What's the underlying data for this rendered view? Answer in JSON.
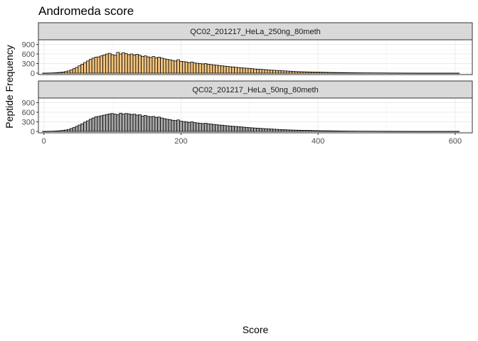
{
  "chart_data": {
    "type": "bar",
    "title": "Andromeda score",
    "xlabel": "Score",
    "ylabel": "Peptide Frequency",
    "xlim": [
      -8,
      625
    ],
    "ylim": [
      0,
      1000
    ],
    "x_ticks": [
      0,
      200,
      400,
      600
    ],
    "y_ticks": [
      0,
      300,
      600,
      900
    ],
    "bin_width": 4,
    "grid": true,
    "panels": [
      {
        "name": "QC02_201217_HeLa_250ng_80meth",
        "fill": "#f2c47e",
        "bins": [
          0,
          4,
          8,
          12,
          16,
          20,
          24,
          28,
          32,
          36,
          40,
          44,
          48,
          52,
          56,
          60,
          64,
          68,
          72,
          76,
          80,
          84,
          88,
          92,
          96,
          100,
          104,
          108,
          112,
          116,
          120,
          124,
          128,
          132,
          136,
          140,
          144,
          148,
          152,
          156,
          160,
          164,
          168,
          172,
          176,
          180,
          184,
          188,
          192,
          196,
          200,
          204,
          208,
          212,
          216,
          220,
          224,
          228,
          232,
          236,
          240,
          244,
          248,
          252,
          256,
          260,
          264,
          268,
          272,
          276,
          280,
          284,
          288,
          292,
          296,
          300,
          304,
          308,
          312,
          316,
          320,
          324,
          328,
          332,
          336,
          340,
          344,
          348,
          352,
          356,
          360,
          364,
          368,
          372,
          376,
          380,
          384,
          388,
          392,
          396,
          400,
          404,
          408,
          412,
          416,
          420,
          424,
          428,
          432,
          436,
          440,
          444,
          448,
          452,
          456,
          460,
          464,
          468,
          472,
          476,
          480,
          484,
          488,
          492,
          496,
          500,
          504,
          508,
          512,
          516,
          520,
          524,
          528,
          532,
          536,
          540,
          544,
          548,
          552,
          556,
          560,
          564,
          568,
          572,
          576,
          580,
          584,
          588,
          592,
          596,
          600,
          604
        ],
        "values": [
          2,
          3,
          5,
          8,
          12,
          18,
          25,
          35,
          50,
          70,
          100,
          140,
          180,
          230,
          280,
          330,
          380,
          430,
          470,
          500,
          510,
          540,
          570,
          600,
          620,
          580,
          560,
          650,
          600,
          640,
          610,
          580,
          600,
          570,
          590,
          560,
          520,
          540,
          510,
          490,
          520,
          480,
          500,
          470,
          450,
          430,
          420,
          400,
          380,
          420,
          370,
          360,
          350,
          330,
          350,
          320,
          310,
          300,
          290,
          300,
          280,
          270,
          260,
          250,
          240,
          230,
          220,
          210,
          200,
          195,
          185,
          175,
          170,
          160,
          155,
          150,
          140,
          130,
          125,
          120,
          115,
          110,
          100,
          95,
          90,
          85,
          80,
          75,
          70,
          65,
          60,
          55,
          50,
          48,
          45,
          42,
          40,
          38,
          36,
          34,
          32,
          30,
          28,
          26,
          24,
          22,
          20,
          19,
          18,
          17,
          16,
          15,
          14,
          13,
          12,
          11,
          10,
          10,
          9,
          9,
          8,
          8,
          7,
          7,
          6,
          6,
          5,
          5,
          5,
          4,
          4,
          4,
          3,
          3,
          3,
          3,
          2,
          2,
          2,
          2,
          2,
          2,
          2,
          2,
          2,
          2,
          2,
          2,
          2,
          2,
          2,
          2
        ]
      },
      {
        "name": "QC02_201217_HeLa_50ng_80meth",
        "fill": "#a6a6a6",
        "bins": [
          0,
          4,
          8,
          12,
          16,
          20,
          24,
          28,
          32,
          36,
          40,
          44,
          48,
          52,
          56,
          60,
          64,
          68,
          72,
          76,
          80,
          84,
          88,
          92,
          96,
          100,
          104,
          108,
          112,
          116,
          120,
          124,
          128,
          132,
          136,
          140,
          144,
          148,
          152,
          156,
          160,
          164,
          168,
          172,
          176,
          180,
          184,
          188,
          192,
          196,
          200,
          204,
          208,
          212,
          216,
          220,
          224,
          228,
          232,
          236,
          240,
          244,
          248,
          252,
          256,
          260,
          264,
          268,
          272,
          276,
          280,
          284,
          288,
          292,
          296,
          300,
          304,
          308,
          312,
          316,
          320,
          324,
          328,
          332,
          336,
          340,
          344,
          348,
          352,
          356,
          360,
          364,
          368,
          372,
          376,
          380,
          384,
          388,
          392,
          396,
          400,
          404,
          408,
          412,
          416,
          420,
          424,
          428,
          432,
          436,
          440,
          444,
          448,
          452,
          456,
          460,
          464,
          468,
          472,
          476,
          480,
          484,
          488,
          492,
          496,
          500,
          504,
          508,
          512,
          516,
          520,
          524,
          528,
          532,
          536,
          540,
          544,
          548,
          552,
          556,
          560,
          564,
          568,
          572,
          576,
          580,
          584,
          588,
          592,
          596,
          600,
          604
        ],
        "values": [
          2,
          3,
          5,
          8,
          12,
          16,
          22,
          32,
          45,
          62,
          90,
          120,
          160,
          200,
          240,
          290,
          330,
          380,
          420,
          460,
          470,
          490,
          510,
          530,
          550,
          560,
          540,
          520,
          570,
          540,
          560,
          550,
          530,
          540,
          510,
          520,
          480,
          500,
          470,
          460,
          470,
          440,
          450,
          420,
          400,
          380,
          370,
          350,
          340,
          360,
          320,
          310,
          300,
          285,
          300,
          275,
          265,
          255,
          245,
          255,
          240,
          230,
          220,
          210,
          200,
          195,
          185,
          175,
          168,
          160,
          155,
          148,
          140,
          132,
          125,
          118,
          112,
          106,
          100,
          95,
          90,
          85,
          80,
          75,
          70,
          65,
          60,
          56,
          52,
          48,
          45,
          42,
          40,
          38,
          36,
          34,
          32,
          30,
          28,
          26,
          24,
          22,
          20,
          19,
          18,
          17,
          16,
          15,
          14,
          13,
          12,
          11,
          10,
          10,
          9,
          9,
          8,
          8,
          7,
          7,
          6,
          6,
          5,
          5,
          5,
          4,
          4,
          4,
          3,
          3,
          3,
          3,
          2,
          2,
          2,
          2,
          2,
          2,
          2,
          2,
          2,
          2,
          2,
          2,
          2,
          2,
          2,
          2,
          2,
          2,
          2,
          2
        ]
      }
    ]
  }
}
